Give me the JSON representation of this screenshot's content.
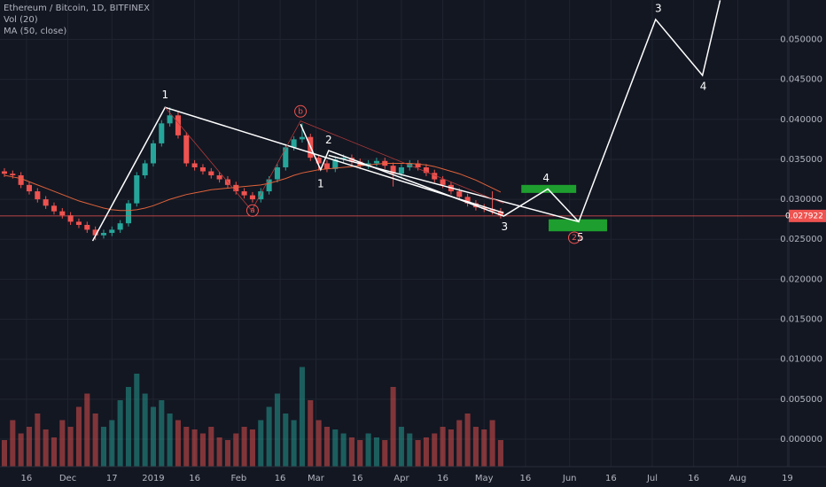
{
  "chart_data": {
    "type": "candlestick",
    "title": "Ethereum / Bitcoin, 1D, BITFINEX",
    "indicators": [
      "Vol (20)",
      "MA (50, close)"
    ],
    "x": [
      -8,
      -5,
      -2,
      1,
      4,
      7,
      10,
      13,
      16,
      19,
      22,
      25,
      28,
      31,
      34,
      37,
      40,
      43,
      46,
      49,
      52,
      55,
      58,
      61,
      64,
      67,
      70,
      73,
      76,
      79,
      82,
      85,
      88,
      91,
      94,
      97,
      100,
      103,
      106,
      109,
      112,
      115,
      118,
      121,
      124,
      127,
      130,
      133,
      136,
      139,
      142,
      145,
      148,
      151,
      154,
      157,
      160,
      163,
      166,
      169,
      172
    ],
    "open": [
      0.0335,
      0.0332,
      0.033,
      0.0318,
      0.031,
      0.03,
      0.0292,
      0.0285,
      0.028,
      0.0272,
      0.0268,
      0.0262,
      0.0255,
      0.0258,
      0.0262,
      0.027,
      0.0295,
      0.033,
      0.0345,
      0.037,
      0.0395,
      0.0405,
      0.038,
      0.0345,
      0.034,
      0.0335,
      0.033,
      0.0325,
      0.0318,
      0.031,
      0.0305,
      0.03,
      0.031,
      0.0325,
      0.034,
      0.0365,
      0.0375,
      0.0378,
      0.0352,
      0.0345,
      0.0338,
      0.035,
      0.0352,
      0.0347,
      0.0342,
      0.0345,
      0.0348,
      0.0342,
      0.0332,
      0.034,
      0.0345,
      0.034,
      0.0333,
      0.0325,
      0.0318,
      0.031,
      0.0303,
      0.0295,
      0.029,
      0.0288,
      0.0285
    ],
    "high": [
      0.0339,
      0.0336,
      0.0334,
      0.0322,
      0.0314,
      0.0304,
      0.0296,
      0.0289,
      0.0284,
      0.0276,
      0.0272,
      0.0266,
      0.0262,
      0.0266,
      0.0274,
      0.0299,
      0.0334,
      0.0349,
      0.0374,
      0.0399,
      0.0415,
      0.0409,
      0.0384,
      0.0349,
      0.0344,
      0.0339,
      0.0334,
      0.0329,
      0.0322,
      0.0314,
      0.0309,
      0.0314,
      0.0329,
      0.0344,
      0.0369,
      0.0379,
      0.0395,
      0.0382,
      0.0356,
      0.0349,
      0.0354,
      0.0356,
      0.0356,
      0.0351,
      0.0349,
      0.0352,
      0.0352,
      0.0346,
      0.0344,
      0.0349,
      0.0349,
      0.0344,
      0.0337,
      0.0329,
      0.0322,
      0.0314,
      0.0307,
      0.0299,
      0.0294,
      0.031,
      0.0289
    ],
    "low": [
      0.0328,
      0.0326,
      0.0314,
      0.0306,
      0.0296,
      0.0288,
      0.0281,
      0.0276,
      0.0268,
      0.0264,
      0.0258,
      0.0249,
      0.0251,
      0.0254,
      0.0258,
      0.0266,
      0.0291,
      0.0326,
      0.0341,
      0.0366,
      0.0391,
      0.0376,
      0.0341,
      0.0336,
      0.0331,
      0.0326,
      0.0321,
      0.0314,
      0.0306,
      0.0301,
      0.0296,
      0.0296,
      0.0306,
      0.0321,
      0.0336,
      0.0361,
      0.0371,
      0.0348,
      0.0336,
      0.0334,
      0.0334,
      0.0346,
      0.0343,
      0.0338,
      0.0338,
      0.0341,
      0.0338,
      0.0316,
      0.0328,
      0.0336,
      0.0336,
      0.0329,
      0.0321,
      0.0314,
      0.0306,
      0.0299,
      0.0291,
      0.0286,
      0.0284,
      0.0281,
      0.0276
    ],
    "close": [
      0.0332,
      0.033,
      0.0318,
      0.031,
      0.03,
      0.0292,
      0.0285,
      0.028,
      0.0272,
      0.0268,
      0.0262,
      0.0255,
      0.0258,
      0.0262,
      0.027,
      0.0295,
      0.033,
      0.0345,
      0.037,
      0.0395,
      0.0405,
      0.038,
      0.0345,
      0.034,
      0.0335,
      0.033,
      0.0325,
      0.0318,
      0.031,
      0.0305,
      0.03,
      0.031,
      0.0325,
      0.034,
      0.0365,
      0.0375,
      0.0378,
      0.0352,
      0.0345,
      0.0338,
      0.035,
      0.0352,
      0.0347,
      0.0342,
      0.0345,
      0.0348,
      0.0342,
      0.0332,
      0.034,
      0.0345,
      0.034,
      0.0333,
      0.0325,
      0.0318,
      0.031,
      0.0303,
      0.0295,
      0.029,
      0.0288,
      0.0285,
      0.028
    ],
    "volume": [
      20,
      35,
      25,
      30,
      40,
      28,
      22,
      35,
      30,
      45,
      55,
      40,
      30,
      35,
      50,
      60,
      70,
      55,
      45,
      50,
      40,
      35,
      30,
      28,
      25,
      30,
      22,
      20,
      25,
      30,
      28,
      35,
      45,
      55,
      40,
      35,
      75,
      50,
      35,
      30,
      28,
      25,
      22,
      20,
      25,
      22,
      20,
      60,
      30,
      25,
      20,
      22,
      25,
      30,
      28,
      35,
      40,
      30,
      28,
      35,
      20
    ],
    "ma": [
      0.033,
      0.0328,
      0.0326,
      0.0322,
      0.0318,
      0.0314,
      0.031,
      0.0306,
      0.0302,
      0.0298,
      0.0295,
      0.0292,
      0.0289,
      0.0287,
      0.0286,
      0.0286,
      0.0287,
      0.0289,
      0.0292,
      0.0296,
      0.03,
      0.0303,
      0.0306,
      0.0308,
      0.031,
      0.0312,
      0.0313,
      0.0314,
      0.0315,
      0.0316,
      0.0317,
      0.0318,
      0.032,
      0.0323,
      0.0326,
      0.033,
      0.0333,
      0.0335,
      0.0337,
      0.0338,
      0.0339,
      0.034,
      0.0341,
      0.0342,
      0.0343,
      0.0344,
      0.0345,
      0.0345,
      0.0345,
      0.0345,
      0.0344,
      0.0343,
      0.0341,
      0.0338,
      0.0335,
      0.0332,
      0.0328,
      0.0324,
      0.0319,
      0.0314,
      0.0309
    ],
    "up_color": "#26a69a",
    "down_color": "#ef5350",
    "ma_color": "#e0623a",
    "xlim": [
      -9.6,
      276.5
    ],
    "ylim": [
      -0.00266,
      0.05493
    ],
    "y2lim": [
      0,
      100
    ],
    "grid": true,
    "xticks": [
      {
        "value": 0,
        "label": "16"
      },
      {
        "value": 15,
        "label": "Dec"
      },
      {
        "value": 31,
        "label": "17"
      },
      {
        "value": 46,
        "label": "2019"
      },
      {
        "value": 61,
        "label": "16"
      },
      {
        "value": 77,
        "label": "Feb"
      },
      {
        "value": 92,
        "label": "16"
      },
      {
        "value": 105,
        "label": "Mar"
      },
      {
        "value": 120,
        "label": "16"
      },
      {
        "value": 136,
        "label": "Apr"
      },
      {
        "value": 151,
        "label": "16"
      },
      {
        "value": 166,
        "label": "May"
      },
      {
        "value": 181,
        "label": "16"
      },
      {
        "value": 197,
        "label": "Jun"
      },
      {
        "value": 212,
        "label": "16"
      },
      {
        "value": 227,
        "label": "Jul"
      },
      {
        "value": 242,
        "label": "16"
      },
      {
        "value": 258,
        "label": "Aug"
      },
      {
        "value": 276,
        "label": "19"
      }
    ],
    "yticks": [
      {
        "value": 0.05,
        "label": "0.050000"
      },
      {
        "value": 0.045,
        "label": "0.045000"
      },
      {
        "value": 0.04,
        "label": "0.040000"
      },
      {
        "value": 0.035,
        "label": "0.035000"
      },
      {
        "value": 0.03,
        "label": "0.030000"
      },
      {
        "value": 0.025,
        "label": "0.025000"
      },
      {
        "value": 0.02,
        "label": "0.020000"
      },
      {
        "value": 0.015,
        "label": "0.015000"
      },
      {
        "value": 0.01,
        "label": "0.010000"
      },
      {
        "value": 0.005,
        "label": "0.005000"
      },
      {
        "value": 0,
        "label": "0.000000"
      }
    ],
    "price_line": 0.027922,
    "price_line_color": "#ef5350",
    "drawings": [
      {
        "color": "#ffffff",
        "points": [
          [
            24.0,
            0.0248
          ],
          [
            50.3,
            0.0415
          ],
          [
            173.1,
            0.0283
          ]
        ]
      },
      {
        "color": "#ffffff",
        "points": [
          [
            99.4,
            0.0394
          ],
          [
            106.7,
            0.0337
          ],
          [
            109.6,
            0.0361
          ],
          [
            173.1,
            0.0279
          ],
          [
            189.1,
            0.0313
          ],
          [
            200.3,
            0.0272
          ],
          [
            228.2,
            0.0525
          ],
          [
            245.2,
            0.0455
          ],
          [
            251.6,
            0.0549
          ]
        ]
      },
      {
        "color": "#ffffff",
        "points": [
          [
            109.6,
            0.0355
          ],
          [
            200.3,
            0.0272
          ]
        ]
      },
      {
        "color": "#b23a3a",
        "points": [
          [
            50.3,
            0.0415
          ],
          [
            81.7,
            0.0286
          ],
          [
            99.4,
            0.0398
          ],
          [
            173.1,
            0.0295
          ]
        ]
      }
    ],
    "boxes": [
      {
        "color": "#1e9e2e",
        "x": [
          179.5,
          199.4
        ],
        "y": [
          0.0308,
          0.0318
        ]
      },
      {
        "color": "#1e9e2e",
        "x": [
          189.4,
          210.6
        ],
        "y": [
          0.026,
          0.0275
        ]
      }
    ],
    "labels": [
      {
        "text": "1",
        "x": 50.3,
        "y": 0.043,
        "color": "#ffffff",
        "circled": false
      },
      {
        "text": "2",
        "x": 109.6,
        "y": 0.0374,
        "color": "#ffffff",
        "circled": false
      },
      {
        "text": "1",
        "x": 106.7,
        "y": 0.0319,
        "color": "#ffffff",
        "circled": false
      },
      {
        "text": "3",
        "x": 173.4,
        "y": 0.0265,
        "color": "#ffffff",
        "circled": false
      },
      {
        "text": "4",
        "x": 188.5,
        "y": 0.0326,
        "color": "#ffffff",
        "circled": false
      },
      {
        "text": "3",
        "x": 229.2,
        "y": 0.0538,
        "color": "#ffffff",
        "circled": false
      },
      {
        "text": "4",
        "x": 245.5,
        "y": 0.0441,
        "color": "#ffffff",
        "circled": false
      },
      {
        "text": "5",
        "x": 200.9,
        "y": 0.0252,
        "color": "#ffffff",
        "circled": false
      },
      {
        "text": "2",
        "x": 198.7,
        "y": 0.0252,
        "color": "#ef5350",
        "circled": true
      },
      {
        "text": "a",
        "x": 82,
        "y": 0.0286,
        "color": "#ef5350",
        "circled": true
      },
      {
        "text": "b",
        "x": 99.4,
        "y": 0.041,
        "color": "#ef5350",
        "circled": true
      }
    ]
  }
}
